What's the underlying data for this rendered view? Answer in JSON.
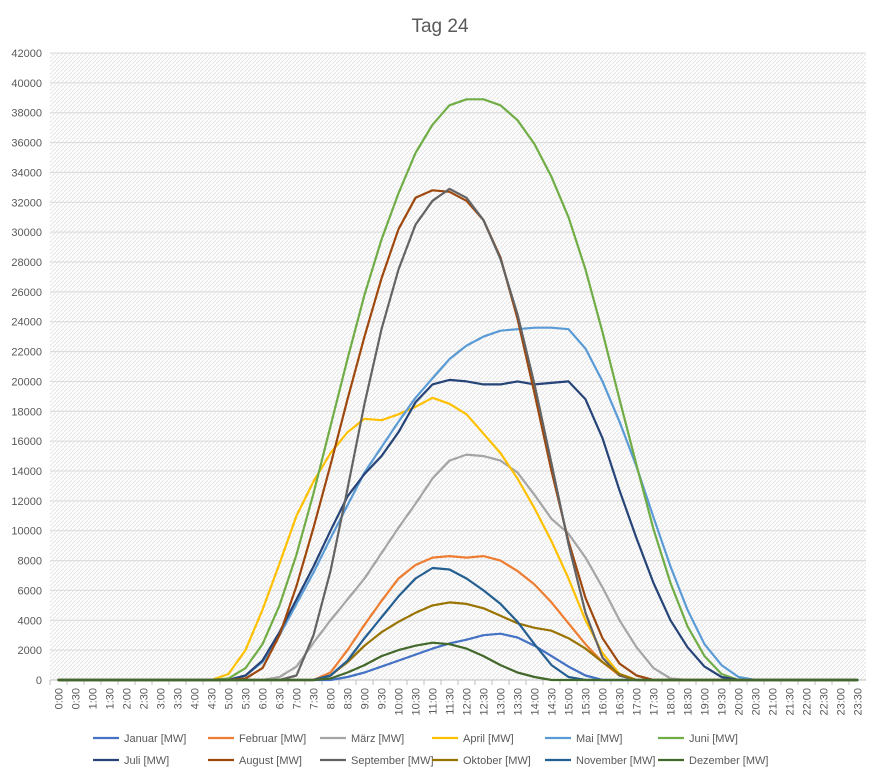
{
  "chart_data": {
    "type": "line",
    "title": "Tag 24",
    "xlabel": "",
    "ylabel": "",
    "ylim": [
      0,
      42000
    ],
    "yticks": [
      0,
      2000,
      4000,
      6000,
      8000,
      10000,
      12000,
      14000,
      16000,
      18000,
      20000,
      22000,
      24000,
      26000,
      28000,
      30000,
      32000,
      34000,
      36000,
      38000,
      40000,
      42000
    ],
    "grid": true,
    "legend_position": "bottom",
    "x": [
      "0:00",
      "0:30",
      "1:00",
      "1:30",
      "2:00",
      "2:30",
      "3:00",
      "3:30",
      "4:00",
      "4:30",
      "5:00",
      "5:30",
      "6:00",
      "6:30",
      "7:00",
      "7:30",
      "8:00",
      "8:30",
      "9:00",
      "9:30",
      "10:00",
      "10:30",
      "11:00",
      "11:30",
      "12:00",
      "12:30",
      "13:00",
      "13:30",
      "14:00",
      "14:30",
      "15:00",
      "15:30",
      "16:00",
      "16:30",
      "17:00",
      "17:30",
      "18:00",
      "18:30",
      "19:00",
      "19:30",
      "20:00",
      "20:30",
      "21:00",
      "21:30",
      "22:00",
      "22:30",
      "23:00",
      "23:30"
    ],
    "series": [
      {
        "name": "Januar [MW]",
        "color": "#4472C4",
        "values": [
          0,
          0,
          0,
          0,
          0,
          0,
          0,
          0,
          0,
          0,
          0,
          0,
          0,
          0,
          0,
          0,
          0,
          200,
          500,
          900,
          1300,
          1700,
          2100,
          2450,
          2700,
          3000,
          3100,
          2850,
          2300,
          1600,
          900,
          300,
          0,
          0,
          0,
          0,
          0,
          0,
          0,
          0,
          0,
          0,
          0,
          0,
          0,
          0,
          0,
          0
        ]
      },
      {
        "name": "Februar [MW]",
        "color": "#ED7D31",
        "values": [
          0,
          0,
          0,
          0,
          0,
          0,
          0,
          0,
          0,
          0,
          0,
          0,
          0,
          0,
          0,
          0,
          500,
          2000,
          3700,
          5300,
          6800,
          7700,
          8200,
          8300,
          8200,
          8300,
          8000,
          7300,
          6400,
          5200,
          3800,
          2400,
          1200,
          300,
          0,
          0,
          0,
          0,
          0,
          0,
          0,
          0,
          0,
          0,
          0,
          0,
          0,
          0
        ]
      },
      {
        "name": "März [MW]",
        "color": "#A5A5A5",
        "values": [
          0,
          0,
          0,
          0,
          0,
          0,
          0,
          0,
          0,
          0,
          0,
          0,
          0,
          200,
          900,
          2500,
          4000,
          5400,
          6800,
          8500,
          10200,
          11800,
          13500,
          14700,
          15100,
          15000,
          14700,
          13900,
          12400,
          10800,
          9800,
          8200,
          6200,
          4000,
          2200,
          800,
          100,
          0,
          0,
          0,
          0,
          0,
          0,
          0,
          0,
          0,
          0,
          0
        ]
      },
      {
        "name": "April [MW]",
        "color": "#FFC000",
        "values": [
          0,
          0,
          0,
          0,
          0,
          0,
          0,
          0,
          0,
          0,
          400,
          2000,
          4700,
          7800,
          11000,
          13300,
          15200,
          16600,
          17500,
          17400,
          17800,
          18300,
          18900,
          18500,
          17800,
          16500,
          15200,
          13500,
          11500,
          9300,
          6800,
          4000,
          1800,
          400,
          0,
          0,
          0,
          0,
          0,
          0,
          0,
          0,
          0,
          0,
          0,
          0,
          0,
          0
        ]
      },
      {
        "name": "Mai [MW]",
        "color": "#5B9BD5",
        "values": [
          0,
          0,
          0,
          0,
          0,
          0,
          0,
          0,
          0,
          0,
          0,
          300,
          1200,
          3000,
          5100,
          7200,
          9500,
          11700,
          13900,
          15600,
          17300,
          18900,
          20200,
          21500,
          22400,
          23000,
          23400,
          23500,
          23600,
          23600,
          23500,
          22200,
          20000,
          17300,
          14300,
          10900,
          7600,
          4700,
          2400,
          1000,
          200,
          0,
          0,
          0,
          0,
          0,
          0,
          0
        ]
      },
      {
        "name": "Juni [MW]",
        "color": "#70AD47",
        "values": [
          0,
          0,
          0,
          0,
          0,
          0,
          0,
          0,
          0,
          0,
          100,
          800,
          2400,
          5000,
          8400,
          12500,
          17000,
          21500,
          25800,
          29500,
          32600,
          35300,
          37200,
          38500,
          38900,
          38900,
          38500,
          37500,
          35900,
          33700,
          31000,
          27500,
          23300,
          18800,
          14400,
          10100,
          6500,
          3600,
          1600,
          400,
          0,
          0,
          0,
          0,
          0,
          0,
          0,
          0
        ]
      },
      {
        "name": "Juli [MW]",
        "color": "#264478",
        "values": [
          0,
          0,
          0,
          0,
          0,
          0,
          0,
          0,
          0,
          0,
          0,
          300,
          1300,
          3200,
          5400,
          7600,
          10000,
          12300,
          13800,
          15000,
          16600,
          18600,
          19800,
          20100,
          20000,
          19800,
          19800,
          20000,
          19800,
          19900,
          20000,
          18800,
          16200,
          12700,
          9500,
          6500,
          4000,
          2200,
          900,
          200,
          0,
          0,
          0,
          0,
          0,
          0,
          0,
          0
        ]
      },
      {
        "name": "August [MW]",
        "color": "#9E480E",
        "values": [
          0,
          0,
          0,
          0,
          0,
          0,
          0,
          0,
          0,
          0,
          0,
          100,
          800,
          3000,
          6300,
          10200,
          14400,
          18800,
          23000,
          26900,
          30200,
          32300,
          32800,
          32700,
          32100,
          30800,
          28300,
          24200,
          19200,
          14000,
          9300,
          5500,
          2800,
          1100,
          300,
          0,
          0,
          0,
          0,
          0,
          0,
          0,
          0,
          0,
          0,
          0,
          0,
          0
        ]
      },
      {
        "name": "September [MW]",
        "color": "#636363",
        "values": [
          0,
          0,
          0,
          0,
          0,
          0,
          0,
          0,
          0,
          0,
          0,
          0,
          0,
          0,
          300,
          3000,
          7300,
          12800,
          18500,
          23500,
          27500,
          30500,
          32100,
          32900,
          32300,
          30800,
          28200,
          24500,
          19800,
          14500,
          9100,
          4500,
          1500,
          300,
          0,
          0,
          0,
          0,
          0,
          0,
          0,
          0,
          0,
          0,
          0,
          0,
          0,
          0
        ]
      },
      {
        "name": "Oktober [MW]",
        "color": "#997300",
        "values": [
          0,
          0,
          0,
          0,
          0,
          0,
          0,
          0,
          0,
          0,
          0,
          0,
          0,
          0,
          0,
          0,
          300,
          1200,
          2300,
          3200,
          3900,
          4500,
          5000,
          5200,
          5100,
          4800,
          4300,
          3800,
          3500,
          3300,
          2800,
          2100,
          1200,
          400,
          0,
          0,
          0,
          0,
          0,
          0,
          0,
          0,
          0,
          0,
          0,
          0,
          0,
          0
        ]
      },
      {
        "name": "November [MW]",
        "color": "#255E91",
        "values": [
          0,
          0,
          0,
          0,
          0,
          0,
          0,
          0,
          0,
          0,
          0,
          0,
          0,
          0,
          0,
          0,
          300,
          1300,
          2800,
          4200,
          5600,
          6800,
          7500,
          7400,
          6800,
          6000,
          5100,
          3900,
          2400,
          1000,
          200,
          0,
          0,
          0,
          0,
          0,
          0,
          0,
          0,
          0,
          0,
          0,
          0,
          0,
          0,
          0,
          0,
          0
        ]
      },
      {
        "name": "Dezember [MW]",
        "color": "#43682B",
        "values": [
          0,
          0,
          0,
          0,
          0,
          0,
          0,
          0,
          0,
          0,
          0,
          0,
          0,
          0,
          0,
          0,
          100,
          500,
          1000,
          1600,
          2000,
          2300,
          2500,
          2400,
          2100,
          1600,
          1000,
          500,
          200,
          0,
          0,
          0,
          0,
          0,
          0,
          0,
          0,
          0,
          0,
          0,
          0,
          0,
          0,
          0,
          0,
          0,
          0,
          0
        ]
      }
    ]
  }
}
